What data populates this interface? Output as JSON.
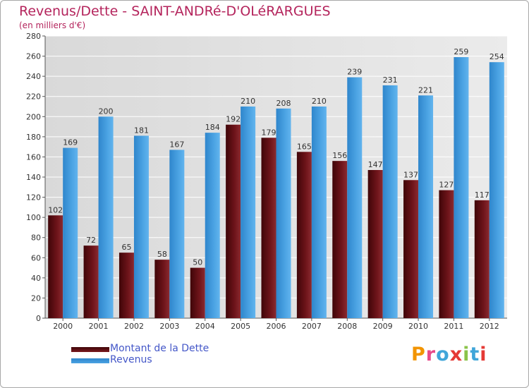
{
  "header": {
    "title": "Revenus/Dette - SAINT-ANDRé-D'OLéRARGUES",
    "subtitle": "(en milliers d'€)"
  },
  "chart_data": {
    "type": "bar",
    "title": "Revenus/Dette - SAINT-ANDRé-D'OLéRARGUES",
    "ylabel": "(en milliers d'€)",
    "categories": [
      "2000",
      "2001",
      "2002",
      "2003",
      "2004",
      "2005",
      "2006",
      "2007",
      "2008",
      "2009",
      "2010",
      "2011",
      "2012"
    ],
    "series": [
      {
        "name": "Montant de la Dette",
        "color": "#7a1a1f",
        "values": [
          102,
          72,
          65,
          58,
          50,
          192,
          179,
          165,
          156,
          147,
          137,
          127,
          117
        ]
      },
      {
        "name": "Revenus",
        "color": "#4ba3e3",
        "values": [
          169,
          200,
          181,
          167,
          184,
          210,
          208,
          210,
          239,
          231,
          221,
          259,
          254
        ]
      }
    ],
    "ylim": [
      0,
      280
    ],
    "yticks": [
      0,
      20,
      40,
      60,
      80,
      100,
      120,
      140,
      160,
      180,
      200,
      220,
      240,
      260,
      280
    ],
    "grid": true,
    "legend": "bottom-left"
  },
  "legend": {
    "items": [
      {
        "label": "Montant de la Dette",
        "color": "#7a1a1f"
      },
      {
        "label": "Revenus",
        "color": "#4ba3e3"
      }
    ]
  },
  "logo": {
    "text": "Proxiti",
    "letter_colors": [
      "#f29400",
      "#e74a8a",
      "#40a6d9",
      "#e53935",
      "#8bc34a",
      "#40a6d9",
      "#e53935"
    ]
  }
}
